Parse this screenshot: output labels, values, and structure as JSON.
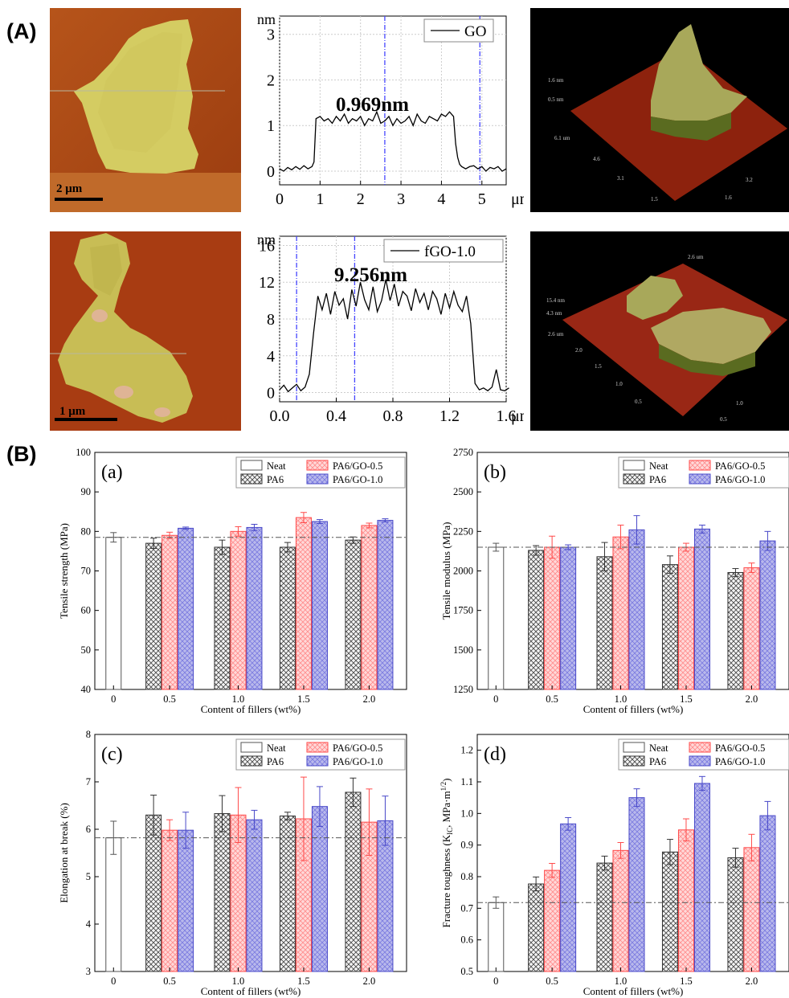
{
  "panel_labels": {
    "A": "(A)",
    "B": "(B)"
  },
  "afm_images": [
    {
      "scale_bar": "2 μm"
    },
    {
      "scale_bar": "1 μm"
    }
  ],
  "afm_3d": [
    {
      "labels": [
        "1.6 nm",
        "0.5 nm",
        "6.1 um",
        "4.6",
        "3.1",
        "1.5",
        "3.2",
        "1.6"
      ]
    },
    {
      "labels": [
        "2.6 um",
        "15.4 nm",
        "4.3 nm",
        "2.6 um",
        "2.0",
        "1.5",
        "1.0",
        "0.5",
        "1.0",
        "0.5"
      ]
    }
  ],
  "chart_data": [
    {
      "type": "line",
      "legend": [
        "GO"
      ],
      "x_unit": "μm",
      "y_unit": "nm",
      "annotation": "0.969nm",
      "xlim": [
        0,
        5.6
      ],
      "ylim": [
        -0.3,
        3.4
      ],
      "xticks": [
        "0",
        "1",
        "2",
        "3",
        "4",
        "5"
      ],
      "yticks": [
        "0",
        "1",
        "2",
        "3"
      ],
      "cursor_x": [
        2.6,
        4.95
      ],
      "x": [
        0,
        0.1,
        0.2,
        0.3,
        0.4,
        0.5,
        0.6,
        0.7,
        0.8,
        0.85,
        0.9,
        1.0,
        1.1,
        1.2,
        1.3,
        1.4,
        1.5,
        1.6,
        1.7,
        1.8,
        1.9,
        2.0,
        2.1,
        2.2,
        2.3,
        2.4,
        2.5,
        2.6,
        2.7,
        2.8,
        2.9,
        3.0,
        3.1,
        3.2,
        3.3,
        3.4,
        3.5,
        3.6,
        3.7,
        3.8,
        3.9,
        4.0,
        4.1,
        4.2,
        4.3,
        4.35,
        4.4,
        4.45,
        4.5,
        4.6,
        4.7,
        4.8,
        4.9,
        5.0,
        5.1,
        5.2,
        5.3,
        5.4,
        5.5,
        5.6
      ],
      "y": [
        0.05,
        0.0,
        0.08,
        0.03,
        0.1,
        0.04,
        0.12,
        0.05,
        0.1,
        0.2,
        1.15,
        1.2,
        1.1,
        1.15,
        1.05,
        1.2,
        1.1,
        1.25,
        1.05,
        1.15,
        1.1,
        1.2,
        1.0,
        1.15,
        1.1,
        1.3,
        1.05,
        1.1,
        1.2,
        1.0,
        1.15,
        1.05,
        1.1,
        1.2,
        1.0,
        1.25,
        1.1,
        1.05,
        1.2,
        1.15,
        1.1,
        1.25,
        1.2,
        1.3,
        1.2,
        0.6,
        0.3,
        0.15,
        0.1,
        0.05,
        0.1,
        0.12,
        0.05,
        0.1,
        0.0,
        0.08,
        0.05,
        0.1,
        0.0,
        0.05
      ]
    },
    {
      "type": "line",
      "legend": [
        "fGO-1.0"
      ],
      "x_unit": "μm",
      "y_unit": "nm",
      "annotation": "9.256nm",
      "xlim": [
        0,
        1.6
      ],
      "ylim": [
        -1,
        17
      ],
      "xticks": [
        "0.0",
        "0.4",
        "0.8",
        "1.2",
        "1.6"
      ],
      "xtick_values": [
        0,
        0.4,
        0.8,
        1.2,
        1.6
      ],
      "yticks": [
        "0",
        "4",
        "8",
        "12",
        "16"
      ],
      "ytick_values": [
        0,
        4,
        8,
        12,
        16
      ],
      "cursor_x": [
        0.12,
        0.53
      ],
      "x": [
        0,
        0.03,
        0.06,
        0.09,
        0.12,
        0.15,
        0.18,
        0.21,
        0.24,
        0.27,
        0.3,
        0.33,
        0.36,
        0.39,
        0.42,
        0.45,
        0.48,
        0.51,
        0.54,
        0.57,
        0.6,
        0.63,
        0.66,
        0.69,
        0.72,
        0.75,
        0.78,
        0.81,
        0.84,
        0.87,
        0.9,
        0.93,
        0.96,
        0.99,
        1.02,
        1.05,
        1.08,
        1.11,
        1.14,
        1.17,
        1.2,
        1.23,
        1.26,
        1.29,
        1.32,
        1.35,
        1.38,
        1.41,
        1.44,
        1.47,
        1.5,
        1.53,
        1.56,
        1.59,
        1.62
      ],
      "y": [
        0.3,
        0.8,
        0.1,
        0.5,
        0.9,
        0.2,
        0.6,
        2.0,
        6.5,
        10.5,
        9.0,
        10.8,
        8.5,
        11.0,
        9.5,
        10.2,
        8.0,
        11.2,
        9.4,
        12.0,
        10.1,
        9.0,
        11.5,
        8.8,
        10.0,
        12.3,
        10.0,
        11.8,
        9.4,
        11.0,
        10.5,
        8.9,
        11.3,
        9.8,
        10.8,
        9.0,
        11.0,
        10.2,
        8.5,
        10.8,
        9.2,
        11.0,
        9.5,
        8.8,
        10.5,
        7.5,
        1.0,
        0.3,
        0.5,
        0.2,
        0.6,
        2.5,
        0.3,
        0.2,
        0.5
      ]
    },
    {
      "type": "bar",
      "panel": "(a)",
      "xlabel": "Content of fillers (wt%)",
      "ylabel": "Tensile strength (MPa)",
      "ylim": [
        40,
        100
      ],
      "yticks": [
        40,
        50,
        60,
        70,
        80,
        90,
        100
      ],
      "categories": [
        "0",
        "0.5",
        "1.0",
        "1.5",
        "2.0"
      ],
      "reference_line": 78.5,
      "legend": [
        "Neat",
        "PA6/GO-0.5",
        "PA6",
        "PA6/GO-1.0"
      ],
      "series": [
        {
          "name": "Neat",
          "values": [
            78.5,
            null,
            null,
            null,
            null
          ],
          "errors": [
            1.2,
            null,
            null,
            null,
            null
          ]
        },
        {
          "name": "PA6",
          "values": [
            null,
            77.0,
            76.0,
            76.0,
            77.8
          ],
          "errors": [
            null,
            1.3,
            1.8,
            1.2,
            0.8
          ]
        },
        {
          "name": "PA6/GO-0.5",
          "values": [
            null,
            79.0,
            80.0,
            83.5,
            81.5
          ],
          "errors": [
            null,
            0.8,
            1.2,
            1.3,
            0.6
          ]
        },
        {
          "name": "PA6/GO-1.0",
          "values": [
            null,
            80.8,
            81.0,
            82.5,
            82.8
          ],
          "errors": [
            null,
            0.3,
            0.8,
            0.5,
            0.4
          ]
        }
      ]
    },
    {
      "type": "bar",
      "panel": "(b)",
      "xlabel": "Content of fillers (wt%)",
      "ylabel": "Tensile modulus (MPa)",
      "ylim": [
        1250,
        2750
      ],
      "yticks": [
        1250,
        1500,
        1750,
        2000,
        2250,
        2500,
        2750
      ],
      "categories": [
        "0",
        "0.5",
        "1.0",
        "1.5",
        "2.0"
      ],
      "reference_line": 2150,
      "legend": [
        "Neat",
        "PA6/GO-0.5",
        "PA6",
        "PA6/GO-1.0"
      ],
      "series": [
        {
          "name": "Neat",
          "values": [
            2150,
            null,
            null,
            null,
            null
          ],
          "errors": [
            25,
            null,
            null,
            null,
            null
          ]
        },
        {
          "name": "PA6",
          "values": [
            null,
            2130,
            2090,
            2040,
            1990
          ],
          "errors": [
            null,
            30,
            90,
            55,
            25
          ]
        },
        {
          "name": "PA6/GO-0.5",
          "values": [
            null,
            2150,
            2215,
            2150,
            2020
          ],
          "errors": [
            null,
            70,
            75,
            25,
            30
          ]
        },
        {
          "name": "PA6/GO-1.0",
          "values": [
            null,
            2150,
            2260,
            2265,
            2190
          ],
          "errors": [
            null,
            15,
            90,
            25,
            60
          ]
        }
      ]
    },
    {
      "type": "bar",
      "panel": "(c)",
      "xlabel": "Content of fillers (wt%)",
      "ylabel": "Elongation at break (%)",
      "ylim": [
        3,
        8
      ],
      "yticks": [
        3,
        4,
        5,
        6,
        7,
        8
      ],
      "categories": [
        "0",
        "0.5",
        "1.0",
        "1.5",
        "2.0"
      ],
      "reference_line": 5.82,
      "legend": [
        "Neat",
        "PA6/GO-0.5",
        "PA6",
        "PA6/GO-1.0"
      ],
      "series": [
        {
          "name": "Neat",
          "values": [
            5.82,
            null,
            null,
            null,
            null
          ],
          "errors": [
            0.35,
            null,
            null,
            null,
            null
          ]
        },
        {
          "name": "PA6",
          "values": [
            null,
            6.3,
            6.33,
            6.28,
            6.78
          ],
          "errors": [
            null,
            0.42,
            0.38,
            0.08,
            0.3
          ]
        },
        {
          "name": "PA6/GO-0.5",
          "values": [
            null,
            5.98,
            6.3,
            6.22,
            6.15
          ],
          "errors": [
            null,
            0.22,
            0.58,
            0.88,
            0.7
          ]
        },
        {
          "name": "PA6/GO-1.0",
          "values": [
            null,
            5.98,
            6.2,
            6.48,
            6.18
          ],
          "errors": [
            null,
            0.38,
            0.2,
            0.42,
            0.52
          ]
        }
      ]
    },
    {
      "type": "bar",
      "panel": "(d)",
      "xlabel": "Content of fillers (wt%)",
      "ylabel_main": "Fracture toughness (K",
      "ylabel_sub": "IC",
      "ylabel_mid": ", MPa·m",
      "ylabel_sup": "1/2",
      "ylabel_end": ")",
      "ylim": [
        0.5,
        1.25
      ],
      "yticks": [
        0.5,
        0.6,
        0.7,
        0.8,
        0.9,
        1.0,
        1.1,
        1.2
      ],
      "categories": [
        "0",
        "0.5",
        "1.0",
        "1.5",
        "2.0"
      ],
      "reference_line": 0.718,
      "legend": [
        "Neat",
        "PA6/GO-0.5",
        "PA6",
        "PA6/GO-1.0"
      ],
      "series": [
        {
          "name": "Neat",
          "values": [
            0.718,
            null,
            null,
            null,
            null
          ],
          "errors": [
            0.018,
            null,
            null,
            null,
            null
          ]
        },
        {
          "name": "PA6",
          "values": [
            null,
            0.777,
            0.843,
            0.878,
            0.86
          ],
          "errors": [
            null,
            0.022,
            0.022,
            0.04,
            0.03
          ]
        },
        {
          "name": "PA6/GO-0.5",
          "values": [
            null,
            0.82,
            0.883,
            0.948,
            0.892
          ],
          "errors": [
            null,
            0.022,
            0.025,
            0.035,
            0.042
          ]
        },
        {
          "name": "PA6/GO-1.0",
          "values": [
            null,
            0.967,
            1.05,
            1.095,
            0.993
          ],
          "errors": [
            null,
            0.02,
            0.028,
            0.022,
            0.045
          ]
        }
      ]
    }
  ],
  "colors": {
    "neat": "#555555",
    "pa6": "#333333",
    "go05_fill": "#ffd8d8",
    "go05_stroke": "#ff4a4a",
    "go10_fill": "#b9b9ec",
    "go10_stroke": "#4848c8",
    "cursor": "#4545ff"
  }
}
